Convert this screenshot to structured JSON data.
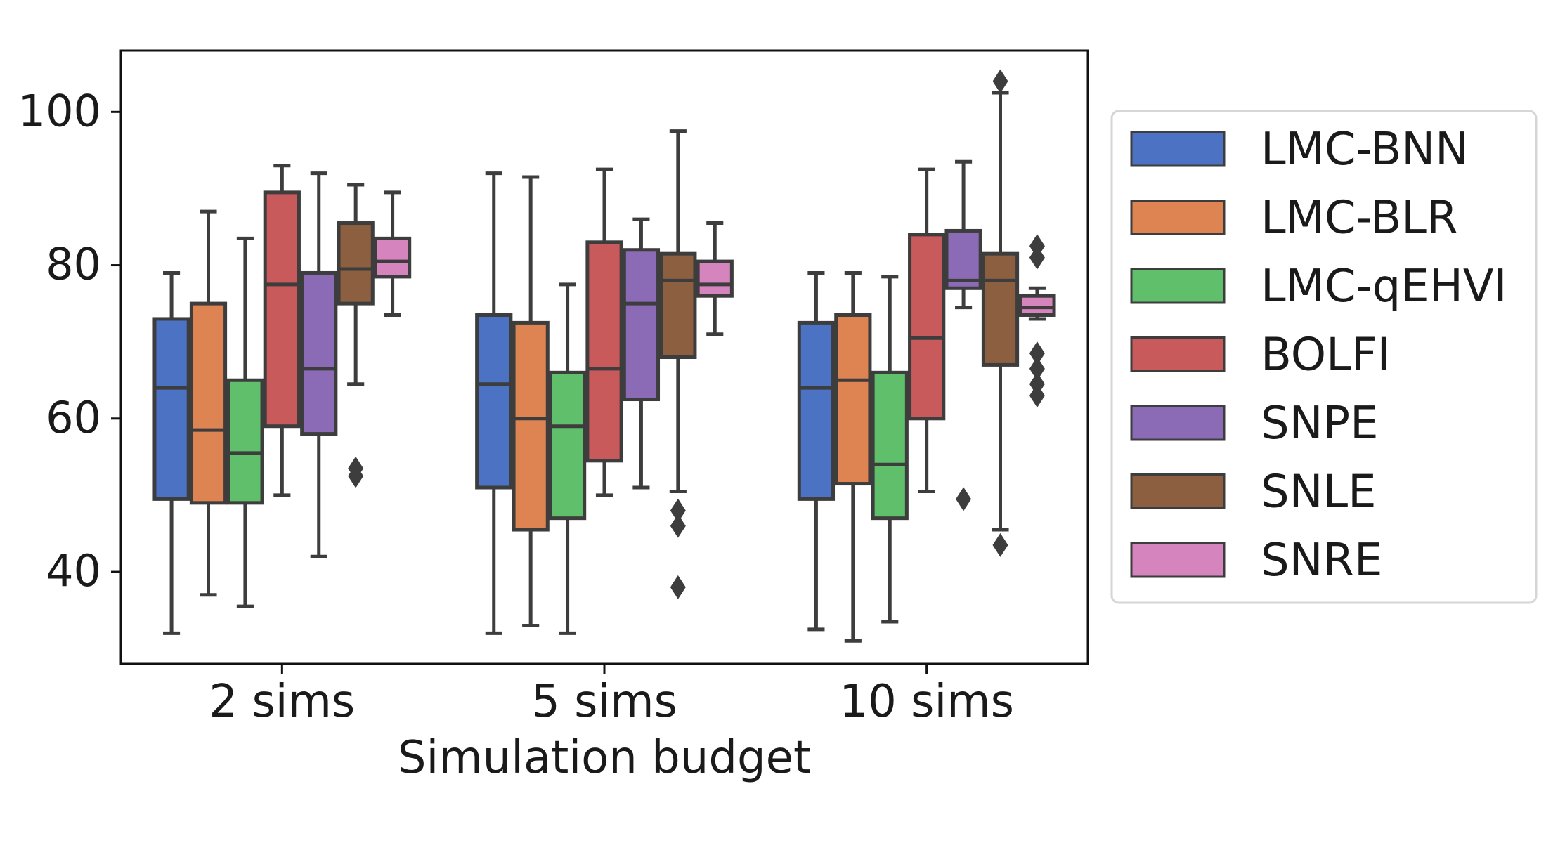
{
  "chart_data": {
    "type": "boxplot",
    "title": "",
    "xlabel": "Simulation budget",
    "ylabel": "",
    "ylim": [
      28,
      108
    ],
    "yticks": [
      40,
      60,
      80,
      100
    ],
    "categories": [
      "2 sims",
      "5 sims",
      "10 sims"
    ],
    "legend_position": "right, outside plot",
    "series": [
      {
        "name": "LMC-BNN",
        "color": "#4c72c4",
        "boxes": [
          {
            "whislo": 32,
            "q1": 49.5,
            "med": 64,
            "q3": 73,
            "whishi": 79,
            "fliers": []
          },
          {
            "whislo": 32,
            "q1": 51,
            "med": 64.5,
            "q3": 73.5,
            "whishi": 92,
            "fliers": []
          },
          {
            "whislo": 32.5,
            "q1": 49.5,
            "med": 64,
            "q3": 72.5,
            "whishi": 79,
            "fliers": []
          }
        ]
      },
      {
        "name": "LMC-BLR",
        "color": "#dd8452",
        "boxes": [
          {
            "whislo": 37,
            "q1": 49,
            "med": 58.5,
            "q3": 75,
            "whishi": 87,
            "fliers": []
          },
          {
            "whislo": 33,
            "q1": 45.5,
            "med": 60,
            "q3": 72.5,
            "whishi": 91.5,
            "fliers": []
          },
          {
            "whislo": 31,
            "q1": 51.5,
            "med": 65,
            "q3": 73.5,
            "whishi": 79,
            "fliers": []
          }
        ]
      },
      {
        "name": "LMC-qEHVI",
        "color": "#5fbf6b",
        "boxes": [
          {
            "whislo": 35.5,
            "q1": 49,
            "med": 55.5,
            "q3": 65,
            "whishi": 83.5,
            "fliers": []
          },
          {
            "whislo": 32,
            "q1": 47,
            "med": 59,
            "q3": 66,
            "whishi": 77.5,
            "fliers": []
          },
          {
            "whislo": 33.5,
            "q1": 47,
            "med": 54,
            "q3": 66,
            "whishi": 78.5,
            "fliers": []
          }
        ]
      },
      {
        "name": "BOLFI",
        "color": "#c85a5c",
        "boxes": [
          {
            "whislo": 50,
            "q1": 59,
            "med": 77.5,
            "q3": 89.5,
            "whishi": 93,
            "fliers": []
          },
          {
            "whislo": 50,
            "q1": 54.5,
            "med": 66.5,
            "q3": 83,
            "whishi": 92.5,
            "fliers": []
          },
          {
            "whislo": 50.5,
            "q1": 60,
            "med": 70.5,
            "q3": 84,
            "whishi": 92.5,
            "fliers": []
          }
        ]
      },
      {
        "name": "SNPE",
        "color": "#8b6bb5",
        "boxes": [
          {
            "whislo": 42,
            "q1": 58,
            "med": 66.5,
            "q3": 79,
            "whishi": 92,
            "fliers": []
          },
          {
            "whislo": 51,
            "q1": 62.5,
            "med": 75,
            "q3": 82,
            "whishi": 86,
            "fliers": []
          },
          {
            "whislo": 74.5,
            "q1": 77,
            "med": 78,
            "q3": 84.5,
            "whishi": 93.5,
            "fliers": [
              49.5
            ]
          }
        ]
      },
      {
        "name": "SNLE",
        "color": "#8b5f3f",
        "boxes": [
          {
            "whislo": 64.5,
            "q1": 75,
            "med": 79.5,
            "q3": 85.5,
            "whishi": 90.5,
            "fliers": [
              52.5,
              53.5
            ]
          },
          {
            "whislo": 50.5,
            "q1": 68,
            "med": 78,
            "q3": 81.5,
            "whishi": 97.5,
            "fliers": [
              48,
              46,
              38
            ]
          },
          {
            "whislo": 45.5,
            "q1": 67,
            "med": 78,
            "q3": 81.5,
            "whishi": 102.5,
            "fliers": [
              104,
              43.5
            ]
          }
        ]
      },
      {
        "name": "SNRE",
        "color": "#d584bd",
        "boxes": [
          {
            "whislo": 73.5,
            "q1": 78.5,
            "med": 80.5,
            "q3": 83.5,
            "whishi": 89.5,
            "fliers": []
          },
          {
            "whislo": 71,
            "q1": 76,
            "med": 77.5,
            "q3": 80.5,
            "whishi": 85.5,
            "fliers": []
          },
          {
            "whislo": 73,
            "q1": 73.5,
            "med": 74.5,
            "q3": 76,
            "whishi": 77,
            "fliers": [
              82.5,
              81,
              68.5,
              66.5,
              64.5,
              63
            ]
          }
        ]
      }
    ]
  }
}
